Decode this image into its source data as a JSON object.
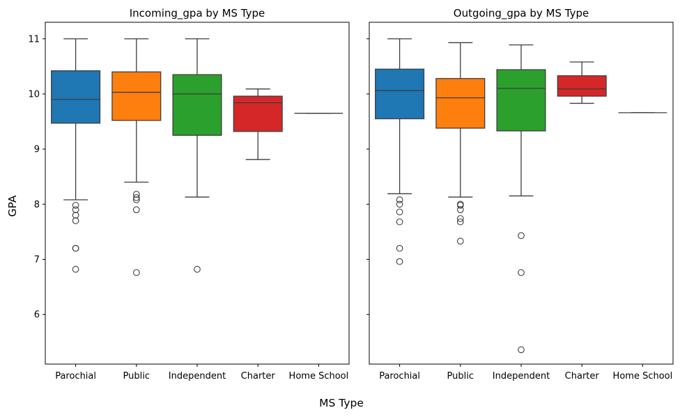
{
  "chart_data": [
    {
      "type": "box",
      "title": "Incoming_gpa by MS Type",
      "categories": [
        "Parochial",
        "Public",
        "Independent",
        "Charter",
        "Home School"
      ],
      "ylabel": "GPA",
      "xlabel": "MS Type",
      "ylim": [
        5.1,
        11.3
      ],
      "yticks": [
        6,
        7,
        8,
        9,
        10,
        11
      ],
      "colors": [
        "#1f77b4",
        "#ff7f0e",
        "#2ca02c",
        "#d62728",
        "#9467bd"
      ],
      "boxes": [
        {
          "category": "Parochial",
          "whisker_low": 8.08,
          "q1": 9.47,
          "median": 9.9,
          "q3": 10.42,
          "whisker_high": 11.0,
          "fliers": [
            7.98,
            7.9,
            7.8,
            7.7,
            7.2,
            7.2,
            6.82
          ]
        },
        {
          "category": "Public",
          "whisker_low": 8.4,
          "q1": 9.52,
          "median": 10.03,
          "q3": 10.4,
          "whisker_high": 11.0,
          "fliers": [
            8.18,
            8.12,
            8.08,
            7.9,
            6.76
          ]
        },
        {
          "category": "Independent",
          "whisker_low": 8.13,
          "q1": 9.25,
          "median": 10.0,
          "q3": 10.35,
          "whisker_high": 11.0,
          "fliers": [
            6.82
          ]
        },
        {
          "category": "Charter",
          "whisker_low": 8.81,
          "q1": 9.32,
          "median": 9.84,
          "q3": 9.96,
          "whisker_high": 10.09,
          "fliers": []
        },
        {
          "category": "Home School",
          "whisker_low": 9.65,
          "q1": 9.65,
          "median": 9.65,
          "q3": 9.65,
          "whisker_high": 9.65,
          "fliers": []
        }
      ]
    },
    {
      "type": "box",
      "title": "Outgoing_gpa by MS Type",
      "categories": [
        "Parochial",
        "Public",
        "Independent",
        "Charter",
        "Home School"
      ],
      "ylim": [
        5.1,
        11.3
      ],
      "yticks": [
        6,
        7,
        8,
        9,
        10,
        11
      ],
      "colors": [
        "#1f77b4",
        "#ff7f0e",
        "#2ca02c",
        "#d62728",
        "#9467bd"
      ],
      "boxes": [
        {
          "category": "Parochial",
          "whisker_low": 8.19,
          "q1": 9.55,
          "median": 10.06,
          "q3": 10.45,
          "whisker_high": 11.0,
          "fliers": [
            8.08,
            8.0,
            7.86,
            7.68,
            7.2,
            6.96
          ]
        },
        {
          "category": "Public",
          "whisker_low": 8.13,
          "q1": 9.38,
          "median": 9.93,
          "q3": 10.28,
          "whisker_high": 10.93,
          "fliers": [
            8.0,
            7.98,
            7.9,
            7.74,
            7.68,
            7.33
          ]
        },
        {
          "category": "Independent",
          "whisker_low": 8.15,
          "q1": 9.33,
          "median": 10.1,
          "q3": 10.44,
          "whisker_high": 10.89,
          "fliers": [
            7.43,
            6.76,
            5.36
          ]
        },
        {
          "category": "Charter",
          "whisker_low": 9.83,
          "q1": 9.96,
          "median": 10.09,
          "q3": 10.33,
          "whisker_high": 10.58,
          "fliers": []
        },
        {
          "category": "Home School",
          "whisker_low": 9.66,
          "q1": 9.66,
          "median": 9.66,
          "q3": 9.66,
          "whisker_high": 9.66,
          "fliers": []
        }
      ]
    }
  ]
}
